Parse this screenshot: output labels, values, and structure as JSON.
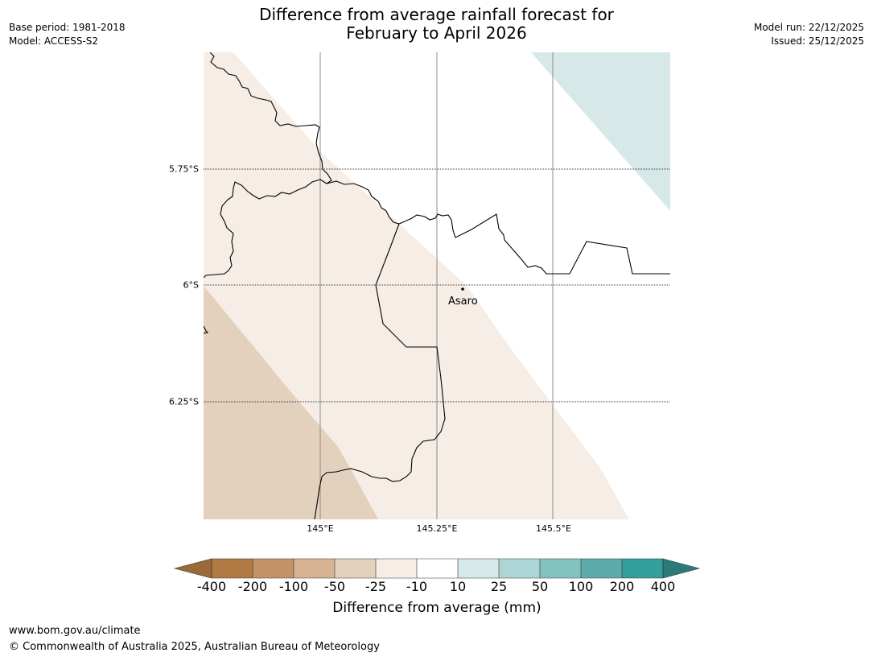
{
  "header": {
    "title_line1": "Difference from average rainfall forecast for",
    "title_line2": "February to April 2026",
    "base_period": "Base period: 1981-2018",
    "model": "Model: ACCESS-S2",
    "model_run": "Model run: 22/12/2025",
    "issued": "Issued: 25/12/2025"
  },
  "map": {
    "lat_labels": [
      "5.75°S",
      "6°S",
      "6.25°S"
    ],
    "lon_labels": [
      "145°E",
      "145.25°E",
      "145.5°E"
    ],
    "place": {
      "name": "Asaro"
    },
    "colors": {
      "border": "#000000",
      "gridline": "#8c8c8c",
      "shade_minus25_minus10": "#f5ede6",
      "shade_minus50_minus25": "#e3d0bd",
      "shade_10_25": "#d6e9e8"
    }
  },
  "colorbar": {
    "labels": [
      "-400",
      "-200",
      "-100",
      "-50",
      "-25",
      "-10",
      "10",
      "25",
      "50",
      "100",
      "200",
      "400"
    ],
    "colors": [
      "#9b6a3a",
      "#b07a42",
      "#c39367",
      "#d5b393",
      "#e3d0bd",
      "#f5ede6",
      "#ffffff",
      "#d6e9e8",
      "#aed5d5",
      "#83c2bf",
      "#5bacaa",
      "#339f9a",
      "#2a7b78"
    ],
    "title": "Difference from average (mm)"
  },
  "footer": {
    "url": "www.bom.gov.au/climate",
    "copyright": "© Commonwealth of Australia 2025, Australian Bureau of Meteorology"
  }
}
